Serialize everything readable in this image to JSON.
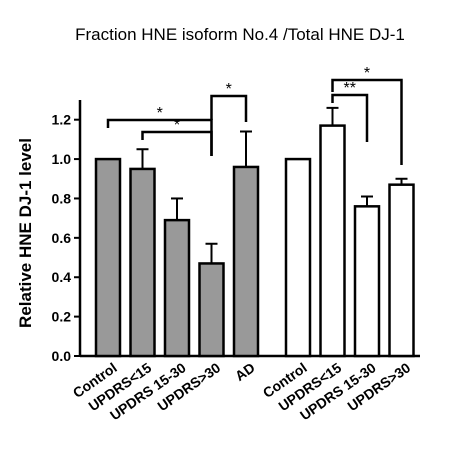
{
  "chart_data": {
    "type": "bar",
    "title": "Fraction HNE isoform No.4 /Total HNE DJ-1",
    "ylabel": "Relative HNE DJ-1 level",
    "xlabel": "",
    "ylim": [
      0,
      1.3
    ],
    "yticks": [
      "0.0",
      "0.2",
      "0.4",
      "0.6",
      "0.8",
      "1.0",
      "1.2"
    ],
    "colors": {
      "gray_bar": "#999999",
      "white_bar": "#ffffff",
      "stroke": "#000000"
    },
    "groups": [
      {
        "fill": "gray",
        "categories": [
          "Control",
          "UPDRS<15",
          "UPDRS 15-30",
          "UPDRS>30",
          "AD"
        ],
        "values": [
          1.0,
          0.95,
          0.69,
          0.47,
          0.96
        ],
        "errors": [
          0.0,
          0.1,
          0.11,
          0.1,
          0.18
        ]
      },
      {
        "fill": "white",
        "categories": [
          "Control",
          "UPDRS<15",
          "UPDRS 15-30",
          "UPDRS>30"
        ],
        "values": [
          1.0,
          1.17,
          0.76,
          0.87
        ],
        "errors": [
          0.0,
          0.09,
          0.05,
          0.03
        ]
      }
    ],
    "significance": [
      {
        "group": 0,
        "from": 0,
        "to": 3,
        "label": "*"
      },
      {
        "group": 0,
        "from": 1,
        "to": 3,
        "label": "*"
      },
      {
        "group": 0,
        "from": 3,
        "to": 4,
        "label": "*"
      },
      {
        "group": 1,
        "from": 1,
        "to": 2,
        "label": "**"
      },
      {
        "group": 1,
        "from": 1,
        "to": 3,
        "label": "*"
      }
    ]
  }
}
